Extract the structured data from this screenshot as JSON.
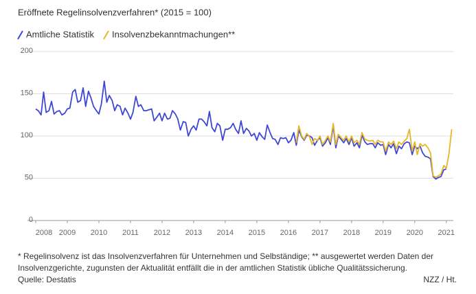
{
  "chart_data": {
    "type": "line",
    "title": "Eröffnete Regelinsolvenzverfahren* (2015 = 100)",
    "footnote": "* Regelinsolvenz ist das Insolvenzverfahren für Unternehmen und Selbständige; ** ausgewertet werden Daten der Insolvenzgerichte, zugunsten der Aktualität entfällt die in der amtlichen Statistik übliche Qualitätssicherung.",
    "source": "Quelle: Destatis",
    "credit": "NZZ / Ht.",
    "x": [
      2008,
      2008.08,
      2008.17,
      2008.25,
      2008.33,
      2008.42,
      2008.5,
      2008.58,
      2008.67,
      2008.75,
      2008.83,
      2008.92,
      2009,
      2009.08,
      2009.17,
      2009.25,
      2009.33,
      2009.42,
      2009.5,
      2009.58,
      2009.67,
      2009.75,
      2009.83,
      2009.92,
      2010,
      2010.08,
      2010.17,
      2010.25,
      2010.33,
      2010.42,
      2010.5,
      2010.58,
      2010.67,
      2010.75,
      2010.83,
      2010.92,
      2011,
      2011.08,
      2011.17,
      2011.25,
      2011.33,
      2011.42,
      2011.5,
      2011.58,
      2011.67,
      2011.75,
      2011.83,
      2011.92,
      2012,
      2012.08,
      2012.17,
      2012.25,
      2012.33,
      2012.42,
      2012.5,
      2012.58,
      2012.67,
      2012.75,
      2012.83,
      2012.92,
      2013,
      2013.08,
      2013.17,
      2013.25,
      2013.33,
      2013.42,
      2013.5,
      2013.58,
      2013.67,
      2013.75,
      2013.83,
      2013.92,
      2014,
      2014.08,
      2014.17,
      2014.25,
      2014.33,
      2014.42,
      2014.5,
      2014.58,
      2014.67,
      2014.75,
      2014.83,
      2014.92,
      2015,
      2015.08,
      2015.17,
      2015.25,
      2015.33,
      2015.42,
      2015.5,
      2015.58,
      2015.67,
      2015.75,
      2015.83,
      2015.92,
      2016,
      2016.08,
      2016.17,
      2016.25,
      2016.33,
      2016.42,
      2016.5,
      2016.58,
      2016.67,
      2016.75,
      2016.83,
      2016.92,
      2017,
      2017.08,
      2017.17,
      2017.25,
      2017.33,
      2017.42,
      2017.5,
      2017.58,
      2017.67,
      2017.75,
      2017.83,
      2017.92,
      2018,
      2018.08,
      2018.17,
      2018.25,
      2018.33,
      2018.42,
      2018.5,
      2018.58,
      2018.67,
      2018.75,
      2018.83,
      2018.92,
      2019,
      2019.08,
      2019.17,
      2019.25,
      2019.33,
      2019.42,
      2019.5,
      2019.58,
      2019.67,
      2019.75,
      2019.83,
      2019.92,
      2020,
      2020.08,
      2020.17,
      2020.25,
      2020.33,
      2020.42,
      2020.5,
      2020.58,
      2020.67,
      2020.75,
      2020.83,
      2020.92,
      2021,
      2021.08,
      2021.17
    ],
    "series": [
      {
        "name": "Amtliche Statistik",
        "color": "#3d47d4",
        "values": [
          132,
          130,
          125,
          152,
          128,
          130,
          141,
          126,
          129,
          130,
          125,
          127,
          132,
          133,
          152,
          155,
          140,
          142,
          157,
          135,
          153,
          145,
          135,
          130,
          126,
          138,
          165,
          140,
          148,
          142,
          130,
          137,
          135,
          125,
          133,
          127,
          120,
          128,
          147,
          135,
          137,
          130,
          130,
          131,
          132,
          118,
          122,
          127,
          118,
          127,
          120,
          121,
          130,
          126,
          120,
          107,
          117,
          116,
          100,
          108,
          112,
          107,
          120,
          120,
          117,
          112,
          129,
          110,
          105,
          115,
          112,
          95,
          108,
          108,
          110,
          115,
          108,
          103,
          118,
          103,
          109,
          106,
          100,
          103,
          95,
          104,
          99,
          96,
          113,
          104,
          97,
          96,
          90,
          98,
          97,
          98,
          92,
          95,
          104,
          89,
          107,
          99,
          95,
          101,
          100,
          98,
          89,
          95,
          98,
          88,
          92,
          98,
          90,
          112,
          86,
          100,
          96,
          92,
          97,
          90,
          98,
          88,
          92,
          86,
          101,
          93,
          90,
          91,
          91,
          86,
          92,
          89,
          90,
          78,
          90,
          86,
          91,
          79,
          88,
          85,
          91,
          93,
          92,
          78,
          88,
          85,
          88,
          80,
          76,
          75,
          73,
          52,
          49,
          51,
          52,
          60,
          61,
          null,
          null
        ]
      },
      {
        "name": "Insolvenzbekanntmachungen**",
        "color": "#e6b62a",
        "values": [
          null,
          null,
          null,
          null,
          null,
          null,
          null,
          null,
          null,
          null,
          null,
          null,
          null,
          null,
          null,
          null,
          null,
          null,
          null,
          null,
          null,
          null,
          null,
          null,
          null,
          null,
          null,
          null,
          null,
          null,
          null,
          null,
          null,
          null,
          null,
          null,
          null,
          null,
          null,
          null,
          null,
          null,
          null,
          null,
          null,
          null,
          null,
          null,
          null,
          null,
          null,
          null,
          null,
          null,
          null,
          null,
          null,
          null,
          null,
          null,
          null,
          null,
          null,
          null,
          null,
          null,
          null,
          null,
          null,
          null,
          null,
          null,
          null,
          null,
          null,
          null,
          null,
          null,
          null,
          null,
          null,
          null,
          null,
          null,
          null,
          null,
          null,
          null,
          null,
          null,
          null,
          null,
          null,
          null,
          null,
          null,
          null,
          null,
          null,
          92,
          112,
          100,
          96,
          103,
          99,
          90,
          97,
          95,
          100,
          90,
          95,
          100,
          93,
          115,
          90,
          102,
          98,
          95,
          100,
          93,
          100,
          92,
          95,
          90,
          104,
          96,
          95,
          94,
          95,
          90,
          95,
          93,
          93,
          82,
          93,
          90,
          94,
          85,
          93,
          90,
          94,
          97,
          108,
          82,
          93,
          78,
          91,
          88,
          90,
          86,
          80,
          53,
          51,
          53,
          55,
          65,
          62,
          78,
          108
        ]
      }
    ],
    "xlim": [
      2008,
      2021.2
    ],
    "xticks": [
      2008,
      2009,
      2010,
      2011,
      2012,
      2013,
      2014,
      2015,
      2016,
      2017,
      2018,
      2019,
      2020,
      2021
    ],
    "ylim": [
      0,
      200
    ],
    "yticks": [
      0,
      50,
      100,
      150,
      200
    ],
    "grid": true
  }
}
